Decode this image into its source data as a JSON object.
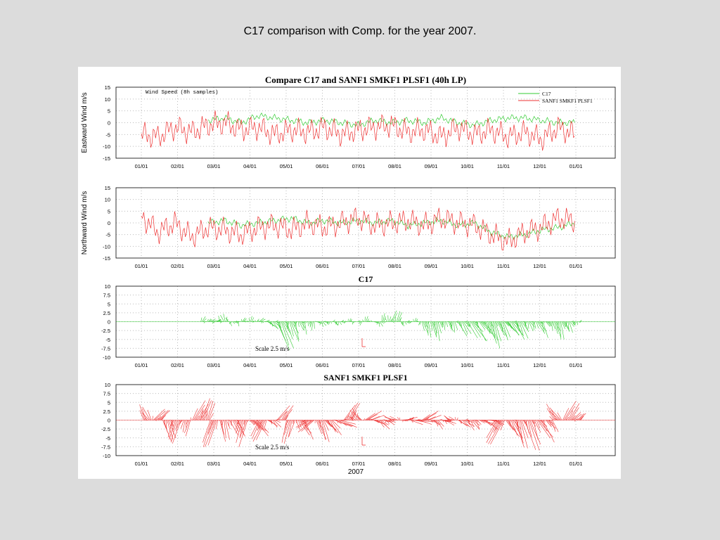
{
  "slide_title": "C17 comparison with Comp. for the year 2007.",
  "colors": {
    "c17": "#33cc33",
    "sanf1": "#ee3333",
    "grid": "#bbbbbb",
    "axis": "#000000"
  },
  "chart_data": [
    {
      "type": "line",
      "title": "Compare C17 and SANF1 SMKF1 PLSF1 (40h LP)",
      "annotation": "Wind Speed (8h samples)",
      "ylabel": "Eastward Wind m/s",
      "ylim": [
        -15,
        15
      ],
      "yticks": [
        "15",
        "10",
        "5",
        "0",
        "-5",
        "-10",
        "-15"
      ],
      "xticks": [
        "01/01",
        "02/01",
        "03/01",
        "04/01",
        "05/01",
        "06/01",
        "07/01",
        "08/01",
        "09/01",
        "10/01",
        "11/01",
        "12/01",
        "01/01"
      ],
      "legend_position": "top-right",
      "grid": true,
      "x": [
        0,
        14,
        28,
        42,
        56,
        70,
        84,
        98,
        112,
        126,
        140,
        154,
        168,
        182,
        196,
        210,
        224,
        238,
        252,
        266,
        280,
        294,
        308,
        322,
        336,
        350,
        364
      ],
      "series": [
        {
          "name": "C17",
          "color": "#33cc33",
          "values": [
            null,
            null,
            null,
            null,
            1,
            2,
            0,
            3,
            2,
            1,
            0,
            1,
            0,
            -1,
            1,
            0,
            1,
            0,
            2,
            0,
            -1,
            1,
            2,
            2,
            1,
            0,
            0
          ]
        },
        {
          "name": "SANF1 SMKF1 PLSF1",
          "color": "#ee3333",
          "values": [
            -5,
            -6,
            -2,
            -4,
            -1,
            0,
            -3,
            -2,
            -5,
            -3,
            -4,
            -2,
            -5,
            -3,
            -2,
            -1,
            -4,
            -3,
            -6,
            -2,
            -5,
            -3,
            -6,
            -4,
            -7,
            -2,
            -5
          ]
        }
      ]
    },
    {
      "type": "line",
      "ylabel": "Northward Wind m/s",
      "ylim": [
        -15,
        15
      ],
      "yticks": [
        "15",
        "10",
        "5",
        "0",
        "-5",
        "-10",
        "-15"
      ],
      "xticks": [
        "01/01",
        "02/01",
        "03/01",
        "04/01",
        "05/01",
        "06/01",
        "07/01",
        "08/01",
        "09/01",
        "10/01",
        "11/01",
        "12/01",
        "01/01"
      ],
      "grid": true,
      "x": [
        0,
        14,
        28,
        42,
        56,
        70,
        84,
        98,
        112,
        126,
        140,
        154,
        168,
        182,
        196,
        210,
        224,
        238,
        252,
        266,
        280,
        294,
        308,
        322,
        336,
        350,
        364
      ],
      "series": [
        {
          "name": "C17",
          "color": "#33cc33",
          "values": [
            null,
            null,
            null,
            null,
            0,
            1,
            -1,
            0,
            1,
            2,
            0,
            1,
            0,
            1,
            0,
            1,
            -1,
            0,
            1,
            -1,
            0,
            -4,
            -6,
            -5,
            -3,
            -2,
            0
          ]
        },
        {
          "name": "SANF1 SMKF1 PLSF1",
          "color": "#ee3333",
          "values": [
            3,
            -4,
            0,
            -6,
            -2,
            -3,
            -5,
            -2,
            -1,
            -3,
            0,
            -2,
            0,
            2,
            -1,
            0,
            1,
            -1,
            2,
            0,
            -1,
            -5,
            -8,
            -4,
            -2,
            2,
            1
          ]
        }
      ]
    },
    {
      "type": "stick",
      "title": "C17",
      "ylim": [
        -10,
        10
      ],
      "yticks": [
        "10",
        "7.5",
        "5",
        "2.5",
        "0",
        "-2.5",
        "-5",
        "-7.5",
        "-10"
      ],
      "xticks": [
        "01/01",
        "02/01",
        "03/01",
        "04/01",
        "05/01",
        "06/01",
        "07/01",
        "08/01",
        "09/01",
        "10/01",
        "11/01",
        "12/01",
        "01/01"
      ],
      "scale_label": "Scale 2.5 m/s",
      "color": "#33cc33",
      "grid": true,
      "t": [
        50,
        58,
        66,
        74,
        82,
        90,
        98,
        106,
        114,
        122,
        130,
        138,
        146,
        154,
        162,
        170,
        178,
        186,
        194,
        202,
        210,
        218,
        226,
        234,
        242,
        250,
        258,
        266,
        274,
        282,
        290,
        298,
        306,
        314,
        322,
        330,
        338,
        346,
        354,
        362
      ],
      "u": [
        0.5,
        1,
        -1,
        1,
        0.5,
        0,
        1,
        2,
        3,
        2,
        1,
        0,
        1,
        0,
        0.5,
        0,
        0,
        0,
        1,
        0,
        1,
        0.5,
        0,
        1,
        1,
        0,
        0.5,
        2,
        4,
        3,
        2,
        2,
        3,
        2,
        1,
        2,
        1,
        1,
        1,
        0
      ],
      "v": [
        1,
        0.5,
        2,
        -1,
        0.5,
        1,
        0.5,
        -2,
        -8,
        -6,
        -3,
        -2,
        -1,
        -0.5,
        -1,
        0.5,
        -0.5,
        1,
        -1,
        2,
        3,
        -1,
        0.5,
        -4,
        -5,
        -2,
        -3,
        -4,
        -6,
        -4,
        -7,
        -5,
        -4,
        -5,
        -3,
        -4,
        -2,
        -5,
        -3,
        -1
      ]
    },
    {
      "type": "stick",
      "title": "SANF1 SMKF1 PLSF1",
      "xlabel": "2007",
      "ylim": [
        -10,
        10
      ],
      "yticks": [
        "10",
        "7.5",
        "5",
        "2.5",
        "0",
        "-2.5",
        "-5",
        "-7.5",
        "-10"
      ],
      "xticks": [
        "01/01",
        "02/01",
        "03/01",
        "04/01",
        "05/01",
        "06/01",
        "07/01",
        "08/01",
        "09/01",
        "10/01",
        "11/01",
        "12/01",
        "01/01"
      ],
      "scale_label": "Scale 2.5 m/s",
      "color": "#ee3333",
      "grid": true,
      "t": [
        2,
        10,
        18,
        26,
        34,
        42,
        50,
        58,
        66,
        74,
        82,
        90,
        98,
        106,
        114,
        122,
        130,
        138,
        146,
        154,
        162,
        170,
        178,
        186,
        194,
        202,
        210,
        218,
        226,
        234,
        242,
        250,
        258,
        266,
        274,
        282,
        290,
        298,
        306,
        314,
        322,
        330,
        338,
        346,
        354,
        362
      ],
      "u": [
        -2,
        3,
        2,
        -2,
        -1,
        3,
        2,
        -3,
        1,
        3,
        -2,
        4,
        -3,
        2,
        3,
        -2,
        3,
        -4,
        2,
        3,
        5,
        3,
        -2,
        4,
        3,
        2,
        -3,
        3,
        5,
        4,
        2,
        3,
        -2,
        3,
        2,
        4,
        3,
        -4,
        3,
        2,
        3,
        4,
        2,
        -3,
        3,
        2
      ],
      "v": [
        4,
        3,
        -6,
        -7,
        -4,
        5,
        6,
        -8,
        -6,
        -5,
        -7,
        -4,
        -6,
        -2,
        4,
        -7,
        -5,
        -3,
        -6,
        -4,
        -2,
        5,
        3,
        2,
        -2,
        -1,
        1,
        0.5,
        -1,
        2,
        -2,
        -1,
        1,
        -2,
        -3,
        -2,
        -1,
        -7,
        -5,
        -8,
        -9,
        -6,
        -3,
        4,
        5,
        2
      ]
    }
  ]
}
